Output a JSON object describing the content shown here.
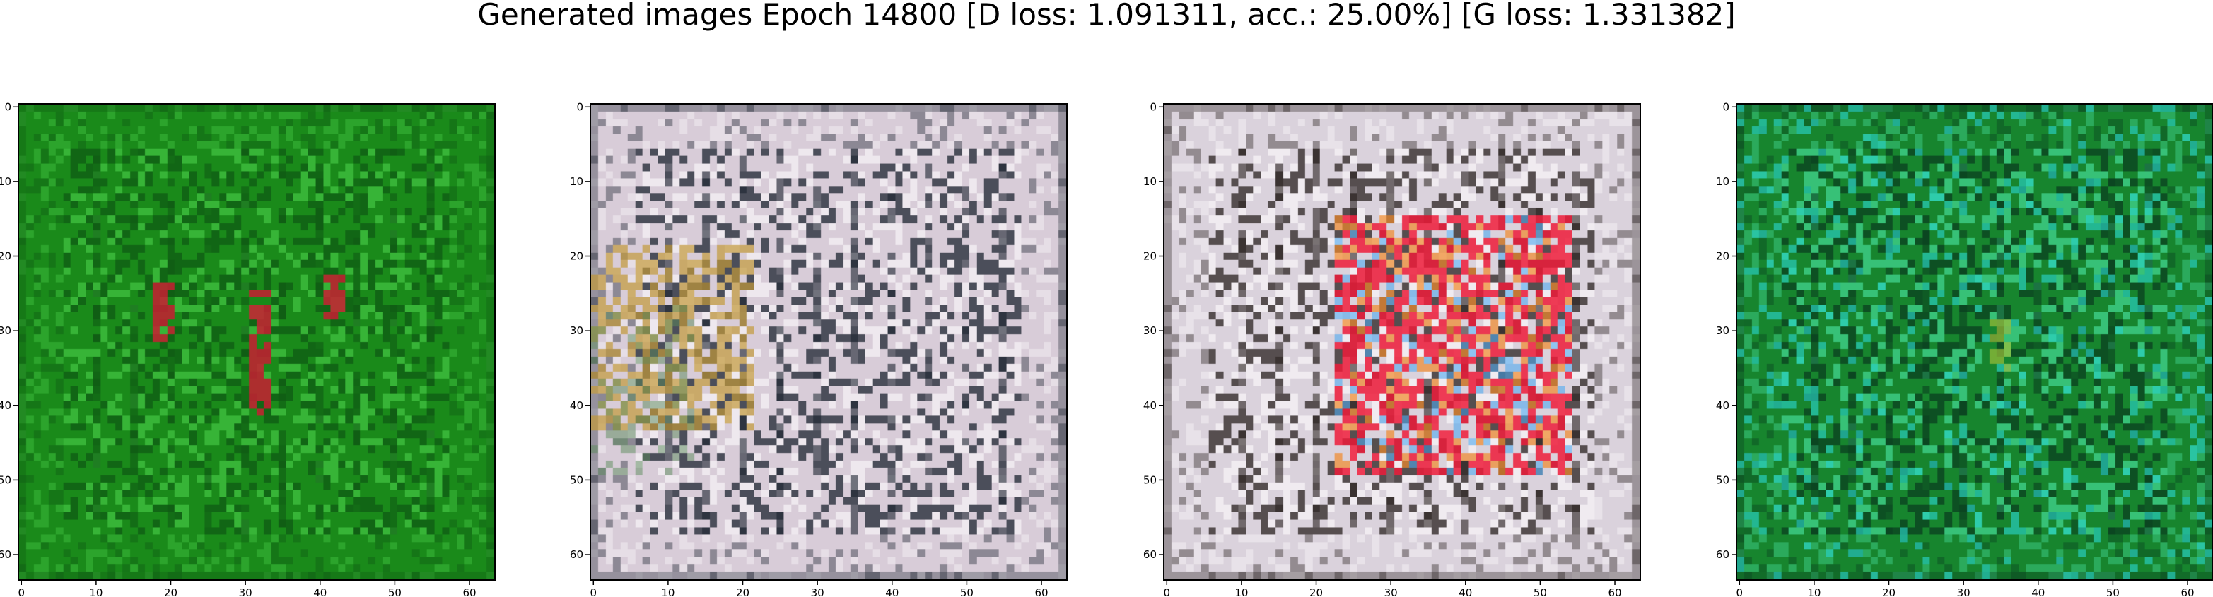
{
  "figure": {
    "title": "Generated images Epoch 14800 [D loss: 1.091311, acc.: 25.00%] [G loss: 1.331382]"
  },
  "panels": [
    {
      "x_ticks": [
        "0",
        "10",
        "20",
        "30",
        "40",
        "50",
        "60"
      ],
      "y_ticks": [
        "0",
        "10",
        "20",
        "30",
        "40",
        "50",
        "60"
      ],
      "palette": {
        "base": "#1a8a1a",
        "dark": "#0f5a14",
        "light": "#3fbf3f",
        "accent": "#c81e32",
        "accent2": "#d9c98a"
      }
    },
    {
      "x_ticks": [
        "0",
        "10",
        "20",
        "30",
        "40",
        "50",
        "60"
      ],
      "y_ticks": [
        "0",
        "10",
        "20",
        "30",
        "40",
        "50",
        "60"
      ],
      "palette": {
        "base": "#d8ccd8",
        "dark": "#1c2430",
        "light": "#f4f0f4",
        "accent": "#c39a3a",
        "accent2": "#5b8a5a"
      }
    },
    {
      "x_ticks": [
        "0",
        "10",
        "20",
        "30",
        "40",
        "50",
        "60"
      ],
      "y_ticks": [
        "0",
        "10",
        "20",
        "30",
        "40",
        "50",
        "60"
      ],
      "palette": {
        "base": "#dad2dc",
        "dark": "#2a2220",
        "light": "#f6f2f6",
        "accent": "#ee1c3a",
        "accent2": "#f28a2a"
      }
    },
    {
      "x_ticks": [
        "0",
        "10",
        "20",
        "30",
        "40",
        "50",
        "60"
      ],
      "y_ticks": [
        "0",
        "10",
        "20",
        "30",
        "40",
        "50",
        "60"
      ],
      "palette": {
        "base": "#17852e",
        "dark": "#0a3f20",
        "light": "#3fd08a",
        "accent": "#9bbf3a",
        "accent2": "#2ad2c8"
      }
    }
  ]
}
